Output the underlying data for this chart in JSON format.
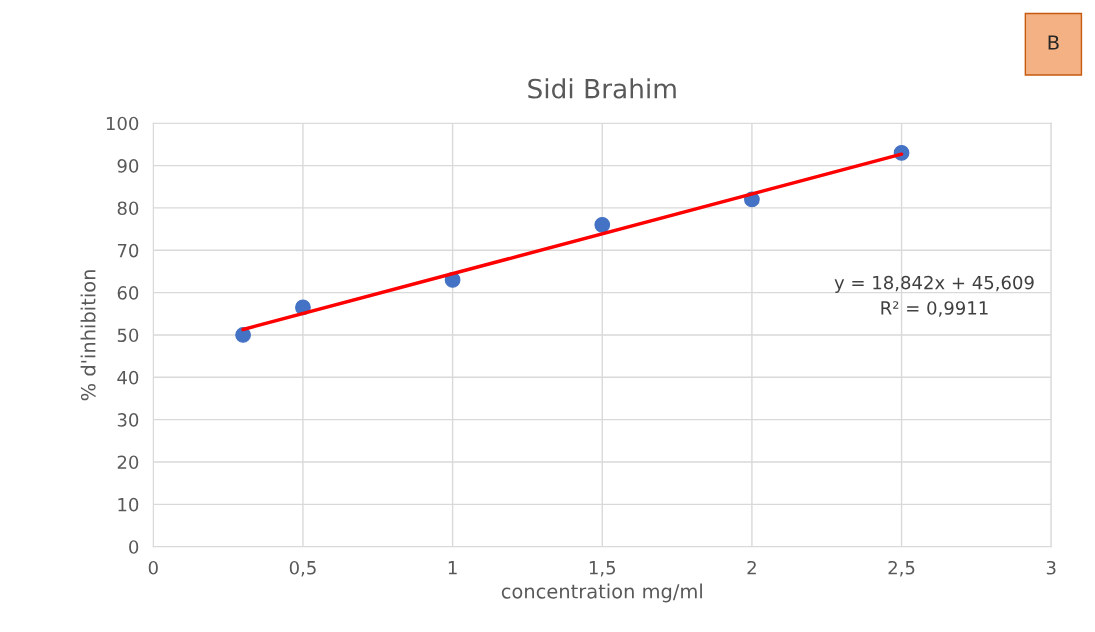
{
  "chart_data": {
    "type": "scatter",
    "title": "Sidi Brahim",
    "xlabel": "concentration mg/ml",
    "ylabel": "% d'inhibition",
    "series": [
      {
        "color": "#4472c4",
        "marker": "circle",
        "x": [
          0.3,
          0.5,
          1,
          1.5,
          2,
          2.5
        ],
        "values": [
          50,
          56.5,
          63,
          76,
          82,
          93
        ]
      },
      {
        "type": "line",
        "color": "#ff0000",
        "marker": "none",
        "line_style": "solid",
        "x": [
          0.3,
          2.5
        ],
        "values": [
          51.3,
          92.7
        ]
      }
    ],
    "xlim": [
      0,
      3
    ],
    "xticks": [
      0,
      {
        "value": 0.5,
        "label": "0,5"
      },
      1,
      {
        "value": 1.5,
        "label": "1,5"
      },
      2,
      {
        "value": 2.5,
        "label": "2,5"
      },
      3
    ],
    "ylim": [
      0,
      100
    ],
    "yticks": [
      0,
      10,
      20,
      30,
      40,
      50,
      60,
      70,
      80,
      90,
      100
    ],
    "grid": true,
    "legend": false,
    "annotations": [
      "B",
      "y = 18,842x + 45,609",
      "R² = 0,9911"
    ]
  }
}
